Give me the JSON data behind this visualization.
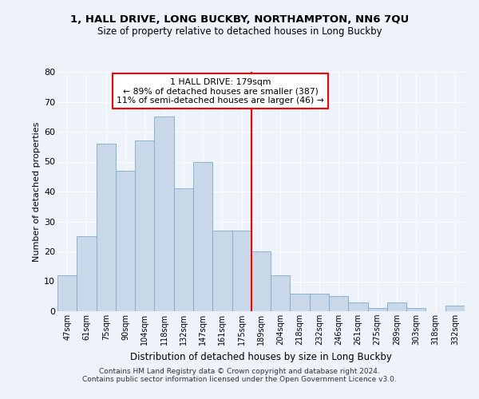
{
  "title": "1, HALL DRIVE, LONG BUCKBY, NORTHAMPTON, NN6 7QU",
  "subtitle": "Size of property relative to detached houses in Long Buckby",
  "xlabel": "Distribution of detached houses by size in Long Buckby",
  "ylabel": "Number of detached properties",
  "categories": [
    "47sqm",
    "61sqm",
    "75sqm",
    "90sqm",
    "104sqm",
    "118sqm",
    "132sqm",
    "147sqm",
    "161sqm",
    "175sqm",
    "189sqm",
    "204sqm",
    "218sqm",
    "232sqm",
    "246sqm",
    "261sqm",
    "275sqm",
    "289sqm",
    "303sqm",
    "318sqm",
    "332sqm"
  ],
  "values": [
    12,
    25,
    56,
    47,
    57,
    65,
    41,
    50,
    27,
    27,
    20,
    12,
    6,
    6,
    5,
    3,
    1,
    3,
    1,
    0,
    2
  ],
  "bar_color": "#c8d8e8",
  "bar_edge_color": "#7aaac8",
  "vline_x_index": 9.5,
  "marker_label": "1 HALL DRIVE: 179sqm",
  "annotation_line1": "← 89% of detached houses are smaller (387)",
  "annotation_line2": "11% of semi-detached houses are larger (46) →",
  "annotation_box_color": "white",
  "annotation_box_edge": "red",
  "vline_color": "red",
  "ylim": [
    0,
    80
  ],
  "yticks": [
    0,
    10,
    20,
    30,
    40,
    50,
    60,
    70,
    80
  ],
  "background_color": "#eef2fa",
  "grid_color": "#ffffff",
  "footnote1": "Contains HM Land Registry data © Crown copyright and database right 2024.",
  "footnote2": "Contains public sector information licensed under the Open Government Licence v3.0."
}
